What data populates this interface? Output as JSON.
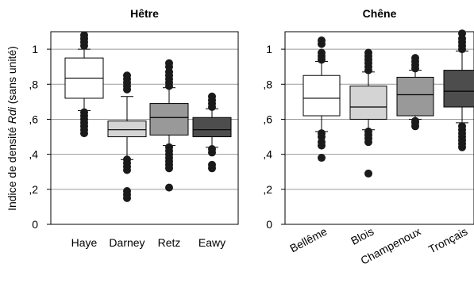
{
  "chart_data": [
    {
      "type": "box",
      "title": "Hêtre",
      "ylabel": "Indice de densité Rdi (sans unité)",
      "ylim": [
        0,
        1.1
      ],
      "yticks": [
        0,
        0.2,
        0.4,
        0.6,
        0.8,
        1.0
      ],
      "ytick_labels": [
        "0",
        ",2",
        ",4",
        ",6",
        ",8",
        "1"
      ],
      "grid": "horizontal",
      "categories": [
        "Haye",
        "Darney",
        "Retz",
        "Eawy"
      ],
      "boxes": [
        {
          "name": "Haye",
          "color": "#ffffff",
          "whisker_low": 0.65,
          "q1": 0.72,
          "median": 0.835,
          "q3": 0.95,
          "whisker_high": 1.0,
          "outliers": [
            0.52,
            0.54,
            0.56,
            0.58,
            0.6,
            0.62,
            0.64,
            1.02,
            1.04,
            1.06,
            1.08
          ]
        },
        {
          "name": "Darney",
          "color": "#d4d4d4",
          "whisker_low": 0.37,
          "q1": 0.5,
          "median": 0.54,
          "q3": 0.59,
          "whisker_high": 0.73,
          "outliers": [
            0.15,
            0.17,
            0.19,
            0.31,
            0.33,
            0.35,
            0.37,
            0.77,
            0.79,
            0.81,
            0.83,
            0.85
          ]
        },
        {
          "name": "Retz",
          "color": "#999999",
          "whisker_low": 0.45,
          "q1": 0.51,
          "median": 0.61,
          "q3": 0.69,
          "whisker_high": 0.78,
          "outliers": [
            0.21,
            0.32,
            0.34,
            0.36,
            0.38,
            0.4,
            0.42,
            0.44,
            0.79,
            0.81,
            0.83,
            0.85,
            0.87,
            0.9,
            0.92
          ]
        },
        {
          "name": "Eawy",
          "color": "#4d4d4d",
          "whisker_low": 0.44,
          "q1": 0.5,
          "median": 0.54,
          "q3": 0.61,
          "whisker_high": 0.66,
          "outliers": [
            0.32,
            0.34,
            0.41,
            0.43,
            0.67,
            0.69,
            0.71,
            0.73
          ]
        }
      ]
    },
    {
      "type": "box",
      "title": "Chêne",
      "ylim": [
        0,
        1.1
      ],
      "yticks": [
        0,
        0.2,
        0.4,
        0.6,
        0.8,
        1.0
      ],
      "ytick_labels": [
        "0",
        ",2",
        ",4",
        ",6",
        ",8",
        "1"
      ],
      "grid": "horizontal",
      "categories": [
        "Bellême",
        "Blois",
        "Champenoux",
        "Tronçais"
      ],
      "boxes": [
        {
          "name": "Bellême",
          "color": "#ffffff",
          "whisker_low": 0.53,
          "q1": 0.62,
          "median": 0.72,
          "q3": 0.85,
          "whisker_high": 0.93,
          "outliers": [
            0.38,
            0.45,
            0.47,
            0.5,
            0.52,
            0.94,
            0.96,
            0.98,
            1.03,
            1.05
          ]
        },
        {
          "name": "Blois",
          "color": "#d4d4d4",
          "whisker_low": 0.54,
          "q1": 0.6,
          "median": 0.67,
          "q3": 0.79,
          "whisker_high": 0.87,
          "outliers": [
            0.29,
            0.47,
            0.49,
            0.51,
            0.53,
            0.88,
            0.9,
            0.92,
            0.94,
            0.96,
            0.98
          ]
        },
        {
          "name": "Champenoux",
          "color": "#999999",
          "whisker_low": 0.6,
          "q1": 0.62,
          "median": 0.74,
          "q3": 0.84,
          "whisker_high": 0.88,
          "outliers": [
            0.56,
            0.58,
            0.59,
            0.89,
            0.91,
            0.93,
            0.95
          ]
        },
        {
          "name": "Tronçais",
          "color": "#4d4d4d",
          "whisker_low": 0.58,
          "q1": 0.67,
          "median": 0.76,
          "q3": 0.88,
          "whisker_high": 0.99,
          "outliers": [
            0.44,
            0.46,
            0.48,
            0.5,
            0.52,
            0.54,
            0.56,
            1.0,
            1.02,
            1.04,
            1.06,
            1.09
          ]
        }
      ]
    }
  ]
}
